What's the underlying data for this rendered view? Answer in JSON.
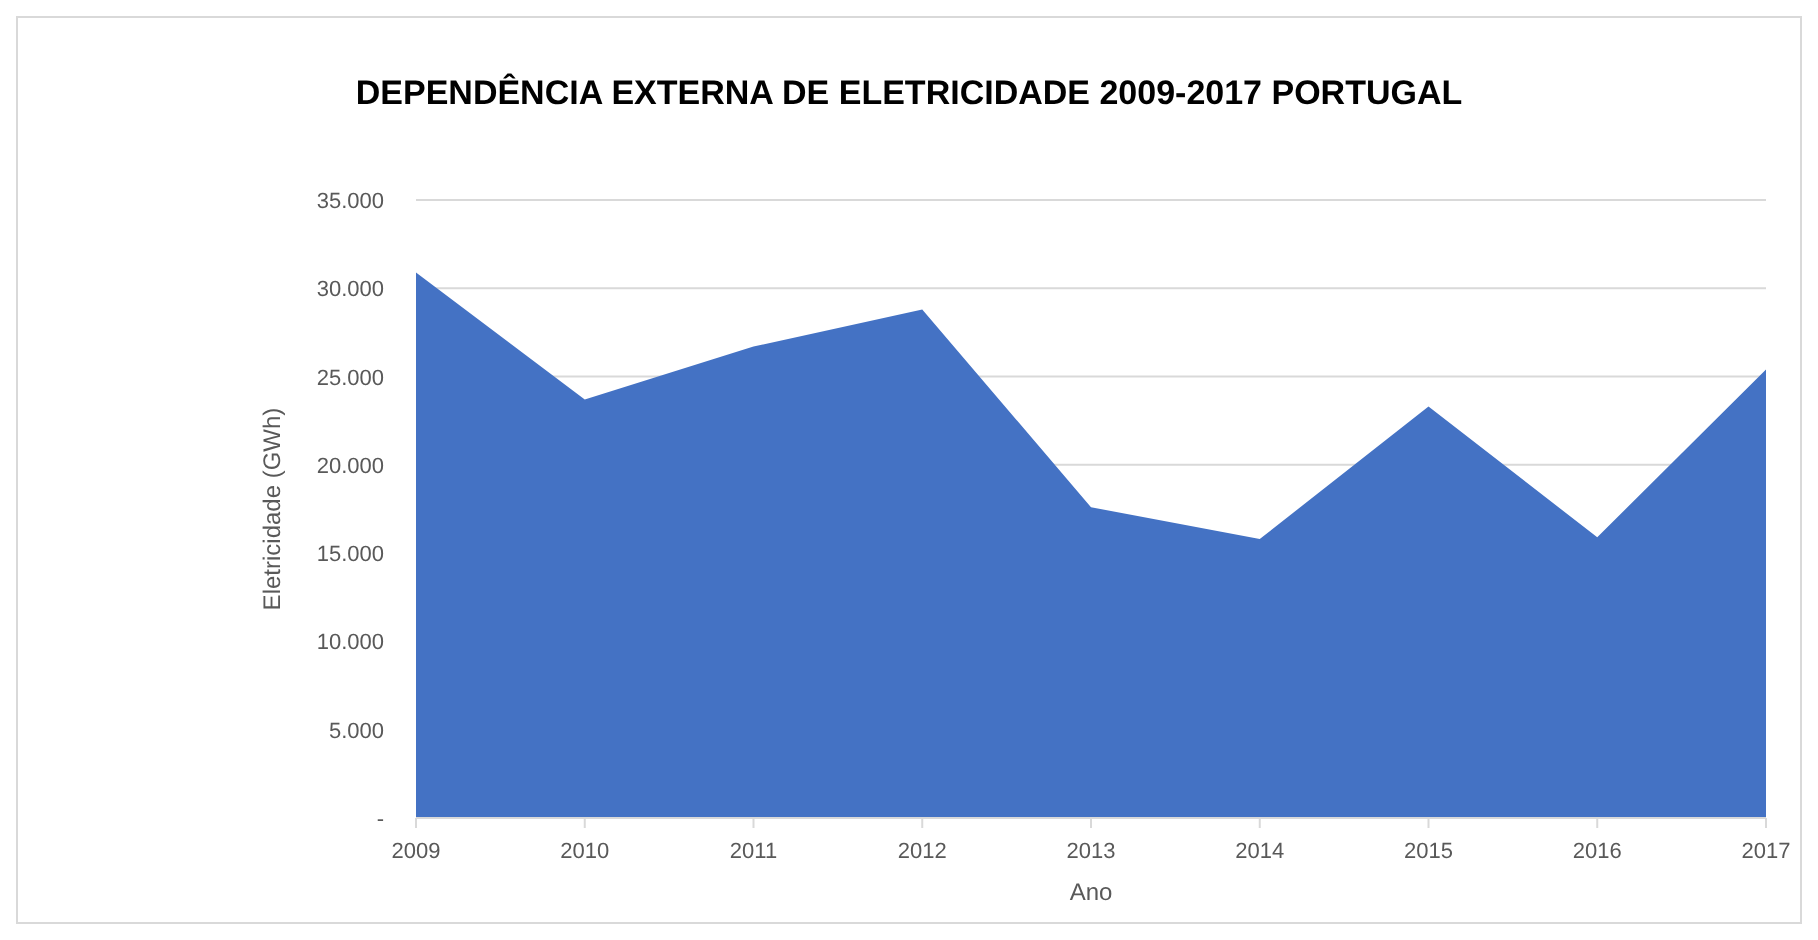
{
  "chart_data": {
    "type": "area",
    "title": "DEPENDÊNCIA EXTERNA DE ELETRICIDADE 2009-2017 PORTUGAL",
    "xlabel": "Ano",
    "ylabel": "Eletricidade (GWh)",
    "categories": [
      "2009",
      "2010",
      "2011",
      "2012",
      "2013",
      "2014",
      "2015",
      "2016",
      "2017"
    ],
    "series": [
      {
        "color": "#4472c4",
        "values": [
          30900,
          23700,
          26700,
          28800,
          17600,
          15800,
          23300,
          15900,
          25400
        ]
      }
    ],
    "ylim": [
      0,
      35000
    ],
    "yticks": [
      {
        "value": 0,
        "label": "-"
      },
      {
        "value": 5000,
        "label": "5.000"
      },
      {
        "value": 10000,
        "label": "10.000"
      },
      {
        "value": 15000,
        "label": "15.000"
      },
      {
        "value": 20000,
        "label": "20.000"
      },
      {
        "value": 25000,
        "label": "25.000"
      },
      {
        "value": 30000,
        "label": "30.000"
      },
      {
        "value": 35000,
        "label": "35.000"
      }
    ],
    "grid": "y"
  }
}
